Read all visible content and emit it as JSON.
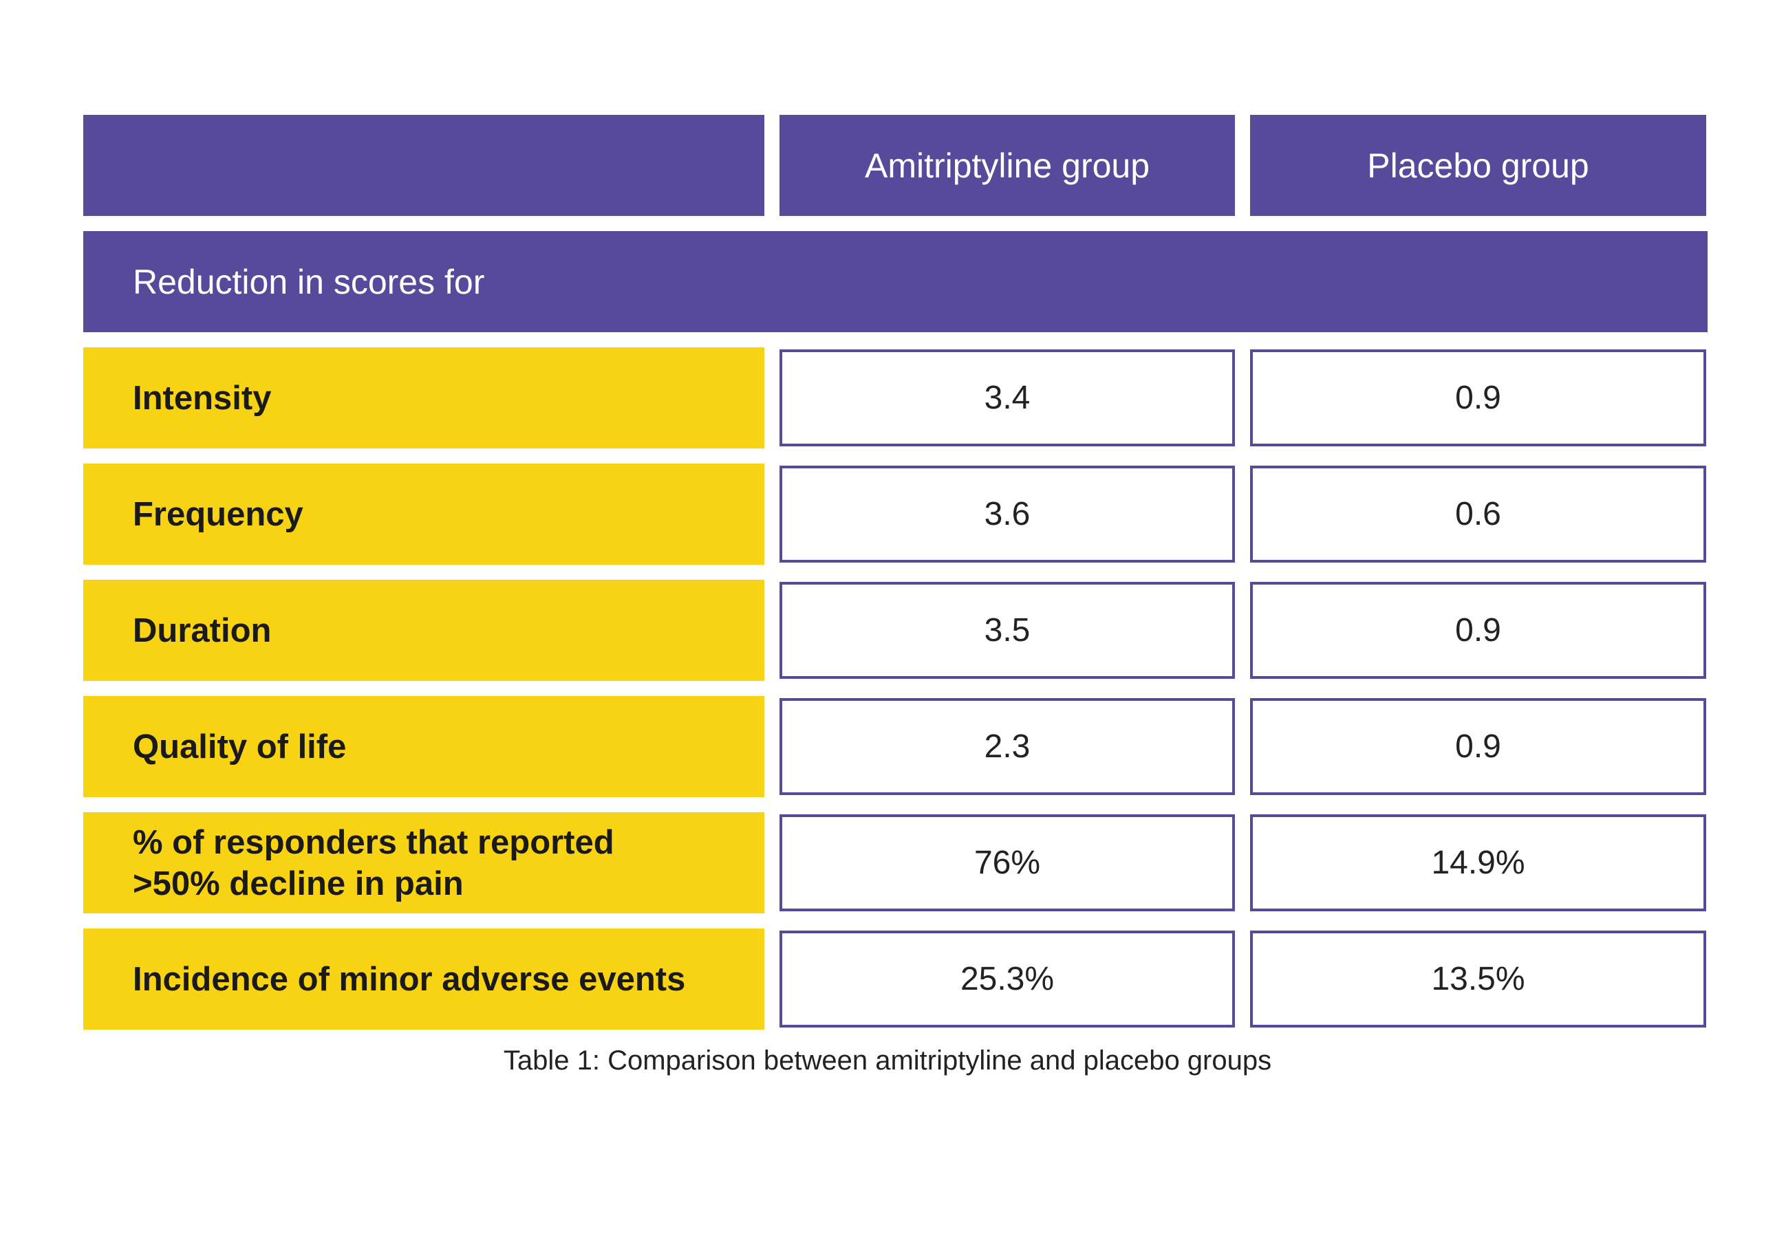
{
  "header": {
    "label_column": "",
    "group_a": "Amitriptyline group",
    "group_b": "Placebo group"
  },
  "section_title": "Reduction in scores for",
  "rows": [
    {
      "label": "Intensity",
      "amitriptyline": "3.4",
      "placebo": "0.9"
    },
    {
      "label": "Frequency",
      "amitriptyline": "3.6",
      "placebo": "0.6"
    },
    {
      "label": "Duration",
      "amitriptyline": "3.5",
      "placebo": "0.9"
    },
    {
      "label": "Quality of life",
      "amitriptyline": "2.3",
      "placebo": "0.9"
    },
    {
      "label": "% of responders that reported\n>50% decline in pain",
      "amitriptyline": "76%",
      "placebo": "14.9%"
    },
    {
      "label": "Incidence of minor adverse events",
      "amitriptyline": "25.3%",
      "placebo": "13.5%"
    }
  ],
  "caption": "Table 1: Comparison between amitriptyline and placebo groups",
  "colors": {
    "header_bg": "#574a9b",
    "label_bg": "#f7d313",
    "border": "#574a9b"
  }
}
